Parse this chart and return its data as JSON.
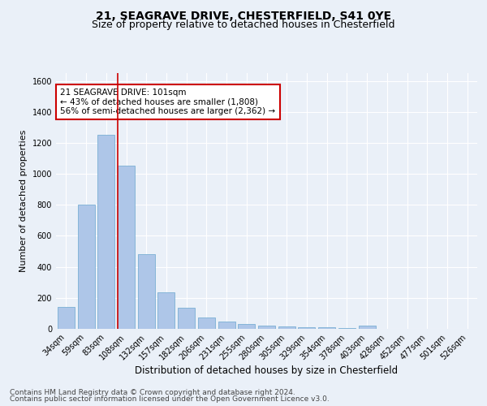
{
  "title1": "21, SEAGRAVE DRIVE, CHESTERFIELD, S41 0YE",
  "title2": "Size of property relative to detached houses in Chesterfield",
  "xlabel": "Distribution of detached houses by size in Chesterfield",
  "ylabel": "Number of detached properties",
  "categories": [
    "34sqm",
    "59sqm",
    "83sqm",
    "108sqm",
    "132sqm",
    "157sqm",
    "182sqm",
    "206sqm",
    "231sqm",
    "255sqm",
    "280sqm",
    "305sqm",
    "329sqm",
    "354sqm",
    "378sqm",
    "403sqm",
    "428sqm",
    "452sqm",
    "477sqm",
    "501sqm",
    "526sqm"
  ],
  "values": [
    140,
    800,
    1250,
    1055,
    480,
    235,
    135,
    75,
    48,
    30,
    22,
    15,
    10,
    8,
    5,
    20,
    0,
    0,
    0,
    0,
    0
  ],
  "bar_color": "#aec6e8",
  "bar_edge_color": "#7aafd4",
  "vline_color": "#cc0000",
  "vline_x_index": 2.57,
  "annotation_text": "21 SEAGRAVE DRIVE: 101sqm\n← 43% of detached houses are smaller (1,808)\n56% of semi-detached houses are larger (2,362) →",
  "annotation_box_color": "#ffffff",
  "annotation_box_edge": "#cc0000",
  "ylim": [
    0,
    1650
  ],
  "yticks": [
    0,
    200,
    400,
    600,
    800,
    1000,
    1200,
    1400,
    1600
  ],
  "background_color": "#eaf0f8",
  "plot_bg_color": "#eaf0f8",
  "grid_color": "#ffffff",
  "footer_line1": "Contains HM Land Registry data © Crown copyright and database right 2024.",
  "footer_line2": "Contains public sector information licensed under the Open Government Licence v3.0.",
  "title1_fontsize": 10,
  "title2_fontsize": 9,
  "xlabel_fontsize": 8.5,
  "ylabel_fontsize": 8,
  "tick_fontsize": 7,
  "ann_fontsize": 7.5,
  "footer_fontsize": 6.5
}
